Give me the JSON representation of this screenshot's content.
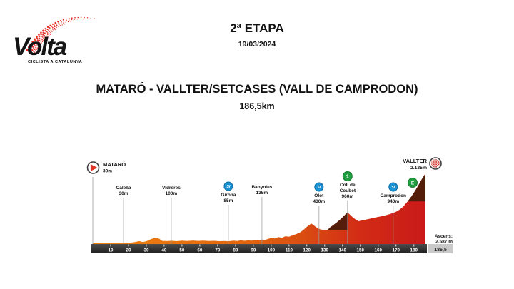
{
  "logo": {
    "name": "Volta",
    "subtitle": "CICLISTA A CATALUNYA",
    "swoosh_color": "#e6261c"
  },
  "header": {
    "stage": "2ª ETAPA",
    "date": "19/03/2024"
  },
  "route": {
    "title": "MATARÓ - VALLTER/SETCASES (VALL DE CAMPRODON)",
    "distance": "186,5km"
  },
  "chart_data": {
    "type": "area",
    "title": "Stage elevation profile",
    "x_unit": "km",
    "y_unit": "m",
    "xlim": [
      0,
      186.5
    ],
    "ylim": [
      0,
      2135
    ],
    "grid": false,
    "x_ticks": [
      10,
      20,
      30,
      40,
      50,
      60,
      70,
      80,
      90,
      100,
      110,
      120,
      130,
      140,
      150,
      160,
      170,
      180
    ],
    "total_distance_label": "186,5",
    "ascent": {
      "label": "Ascens:",
      "value": "2.587 m"
    },
    "profile_km_m": [
      [
        0,
        30
      ],
      [
        6,
        22
      ],
      [
        12,
        28
      ],
      [
        17.2,
        30
      ],
      [
        21,
        38
      ],
      [
        24,
        65
      ],
      [
        26,
        88
      ],
      [
        28,
        62
      ],
      [
        30,
        85
      ],
      [
        33,
        155
      ],
      [
        35,
        190
      ],
      [
        37,
        165
      ],
      [
        39,
        95
      ],
      [
        42,
        88
      ],
      [
        44,
        100
      ],
      [
        47,
        86
      ],
      [
        50,
        104
      ],
      [
        53,
        90
      ],
      [
        56,
        106
      ],
      [
        59,
        94
      ],
      [
        62,
        104
      ],
      [
        65,
        90
      ],
      [
        68,
        98
      ],
      [
        71,
        86
      ],
      [
        74,
        92
      ],
      [
        76,
        85
      ],
      [
        79,
        102
      ],
      [
        81,
        92
      ],
      [
        83,
        112
      ],
      [
        85,
        98
      ],
      [
        87,
        110
      ],
      [
        89,
        104
      ],
      [
        91,
        118
      ],
      [
        93,
        112
      ],
      [
        94.8,
        135
      ],
      [
        96.5,
        128
      ],
      [
        98,
        148
      ],
      [
        100,
        185
      ],
      [
        102,
        165
      ],
      [
        104,
        210
      ],
      [
        106,
        190
      ],
      [
        108,
        235
      ],
      [
        110,
        220
      ],
      [
        112,
        262
      ],
      [
        114,
        300
      ],
      [
        116,
        345
      ],
      [
        118,
        420
      ],
      [
        120,
        520
      ],
      [
        122.5,
        620
      ],
      [
        124.5,
        540
      ],
      [
        126,
        480
      ],
      [
        127.5,
        445
      ],
      [
        129,
        430
      ],
      [
        131.6,
        428
      ],
      [
        133,
        500
      ],
      [
        135,
        580
      ],
      [
        137,
        665
      ],
      [
        139,
        755
      ],
      [
        141,
        860
      ],
      [
        142.8,
        960
      ],
      [
        144.5,
        870
      ],
      [
        146,
        795
      ],
      [
        147.5,
        735
      ],
      [
        149,
        690
      ],
      [
        151,
        715
      ],
      [
        153,
        740
      ],
      [
        155,
        762
      ],
      [
        157,
        785
      ],
      [
        159,
        808
      ],
      [
        161,
        830
      ],
      [
        163,
        855
      ],
      [
        165,
        882
      ],
      [
        167,
        915
      ],
      [
        168.4,
        940
      ],
      [
        170,
        975
      ],
      [
        172,
        1040
      ],
      [
        174,
        1130
      ],
      [
        176.5,
        1290
      ],
      [
        178.5,
        1430
      ],
      [
        180.5,
        1590
      ],
      [
        182.5,
        1770
      ],
      [
        184.5,
        1965
      ],
      [
        186.5,
        2135
      ]
    ],
    "steep_segments": [
      {
        "from_km": 131.6,
        "to_km": 142.8,
        "base_m": 428
      },
      {
        "from_km": 176.5,
        "to_km": 186.5,
        "base_m": 1290
      }
    ],
    "waypoints": [
      {
        "name": "MATARÓ",
        "alt": "30m",
        "km": 0,
        "type": "start"
      },
      {
        "name": "Calella",
        "alt": "30m",
        "km": 17.2,
        "type": "town",
        "label_top": 259
      },
      {
        "name": "Vidreres",
        "alt": "100m",
        "km": 44,
        "type": "town",
        "label_top": 259
      },
      {
        "name": "Girona",
        "alt": "85m",
        "km": 76,
        "type": "sprint",
        "label_top": 269
      },
      {
        "name": "Banyoles",
        "alt": "135m",
        "km": 94.8,
        "type": "town",
        "label_top": 258
      },
      {
        "name": "Olot",
        "alt": "430m",
        "km": 126.8,
        "type": "sprint",
        "label_top": 270
      },
      {
        "name": "Coll de Coubet",
        "alt": "960m",
        "km": 142.8,
        "type": "cat1",
        "label_top": 255,
        "lines": [
          "Coll de",
          "Coubet",
          "960m"
        ]
      },
      {
        "name": "Camprodon",
        "alt": "940m",
        "km": 168.4,
        "type": "sprint",
        "label_top": 270
      },
      {
        "name": "VALLTER",
        "alt": "2.135m",
        "km": 186.5,
        "type": "finish",
        "climb_category": "E"
      }
    ],
    "icon_text": {
      "sprint": "SI",
      "cat1": "1",
      "especial": "E"
    },
    "icon_names": {
      "start": "start-icon",
      "sprint": "intermediate-sprint-icon",
      "cat1": "category-1-climb-icon",
      "especial": "especial-climb-icon",
      "finish": "finish-checkered-icon"
    },
    "colors": {
      "gradient_start": "#ee8312",
      "gradient_mid": "#da4f12",
      "gradient_end": "#c91a18",
      "steep_overlay": "#541d0a",
      "axis_bar_top": "#4d4d4d",
      "axis_bar_bottom": "#1f1f1f",
      "axis_text": "#ffffff",
      "end_box_bg": "#c9c9c9",
      "end_box_text": "#222222",
      "guide_line": "#999999",
      "sprint_blue": "#1a93d2",
      "sprint_blue_edge": "#0d6ca6",
      "climb_green": "#209d40",
      "climb_green_edge": "#147a2e",
      "start_red": "#e03524",
      "finish_checker_red": "#d23025",
      "label_text": "#141414"
    }
  }
}
